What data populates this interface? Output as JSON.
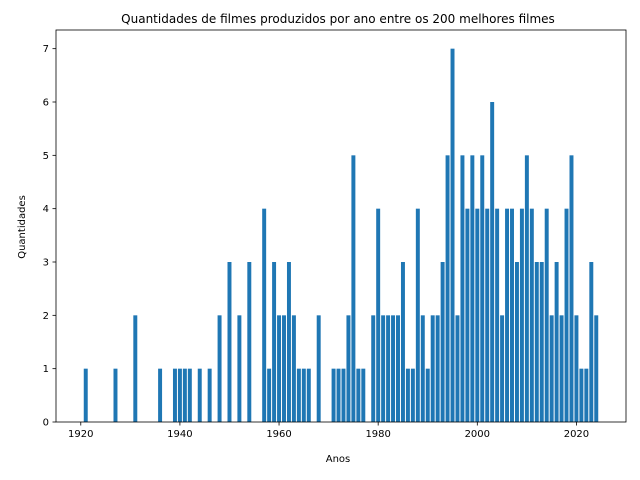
{
  "chart_data": {
    "type": "bar",
    "title": "Quantidades de filmes produzidos por ano entre os 200 melhores filmes",
    "xlabel": "Anos",
    "ylabel": "Quantidades",
    "xlim": [
      1915,
      2030
    ],
    "ylim": [
      0,
      7.35
    ],
    "xticks": [
      1920,
      1940,
      1960,
      1980,
      2000,
      2020
    ],
    "yticks": [
      0,
      1,
      2,
      3,
      4,
      5,
      6,
      7
    ],
    "grid": false,
    "bar_color": "#1f77b4",
    "x": [
      1921,
      1927,
      1931,
      1936,
      1939,
      1940,
      1941,
      1942,
      1944,
      1946,
      1948,
      1950,
      1952,
      1954,
      1957,
      1958,
      1959,
      1960,
      1961,
      1962,
      1963,
      1964,
      1965,
      1966,
      1968,
      1971,
      1972,
      1973,
      1974,
      1975,
      1976,
      1977,
      1979,
      1980,
      1981,
      1982,
      1983,
      1984,
      1985,
      1986,
      1987,
      1988,
      1989,
      1990,
      1991,
      1992,
      1993,
      1994,
      1995,
      1996,
      1997,
      1998,
      1999,
      2000,
      2001,
      2002,
      2003,
      2004,
      2005,
      2006,
      2007,
      2008,
      2009,
      2010,
      2011,
      2012,
      2013,
      2014,
      2015,
      2016,
      2017,
      2018,
      2019,
      2020,
      2021,
      2022,
      2023,
      2024
    ],
    "values": [
      1,
      1,
      2,
      1,
      1,
      1,
      1,
      1,
      1,
      1,
      2,
      3,
      2,
      3,
      4,
      1,
      3,
      2,
      2,
      3,
      2,
      1,
      1,
      1,
      2,
      1,
      1,
      1,
      2,
      5,
      1,
      1,
      2,
      4,
      2,
      2,
      2,
      2,
      3,
      1,
      1,
      4,
      2,
      1,
      2,
      2,
      3,
      5,
      7,
      2,
      5,
      4,
      5,
      4,
      5,
      4,
      6,
      4,
      2,
      4,
      4,
      3,
      4,
      5,
      4,
      3,
      3,
      4,
      2,
      3,
      2,
      4,
      5,
      2,
      1,
      1,
      3,
      2
    ]
  }
}
